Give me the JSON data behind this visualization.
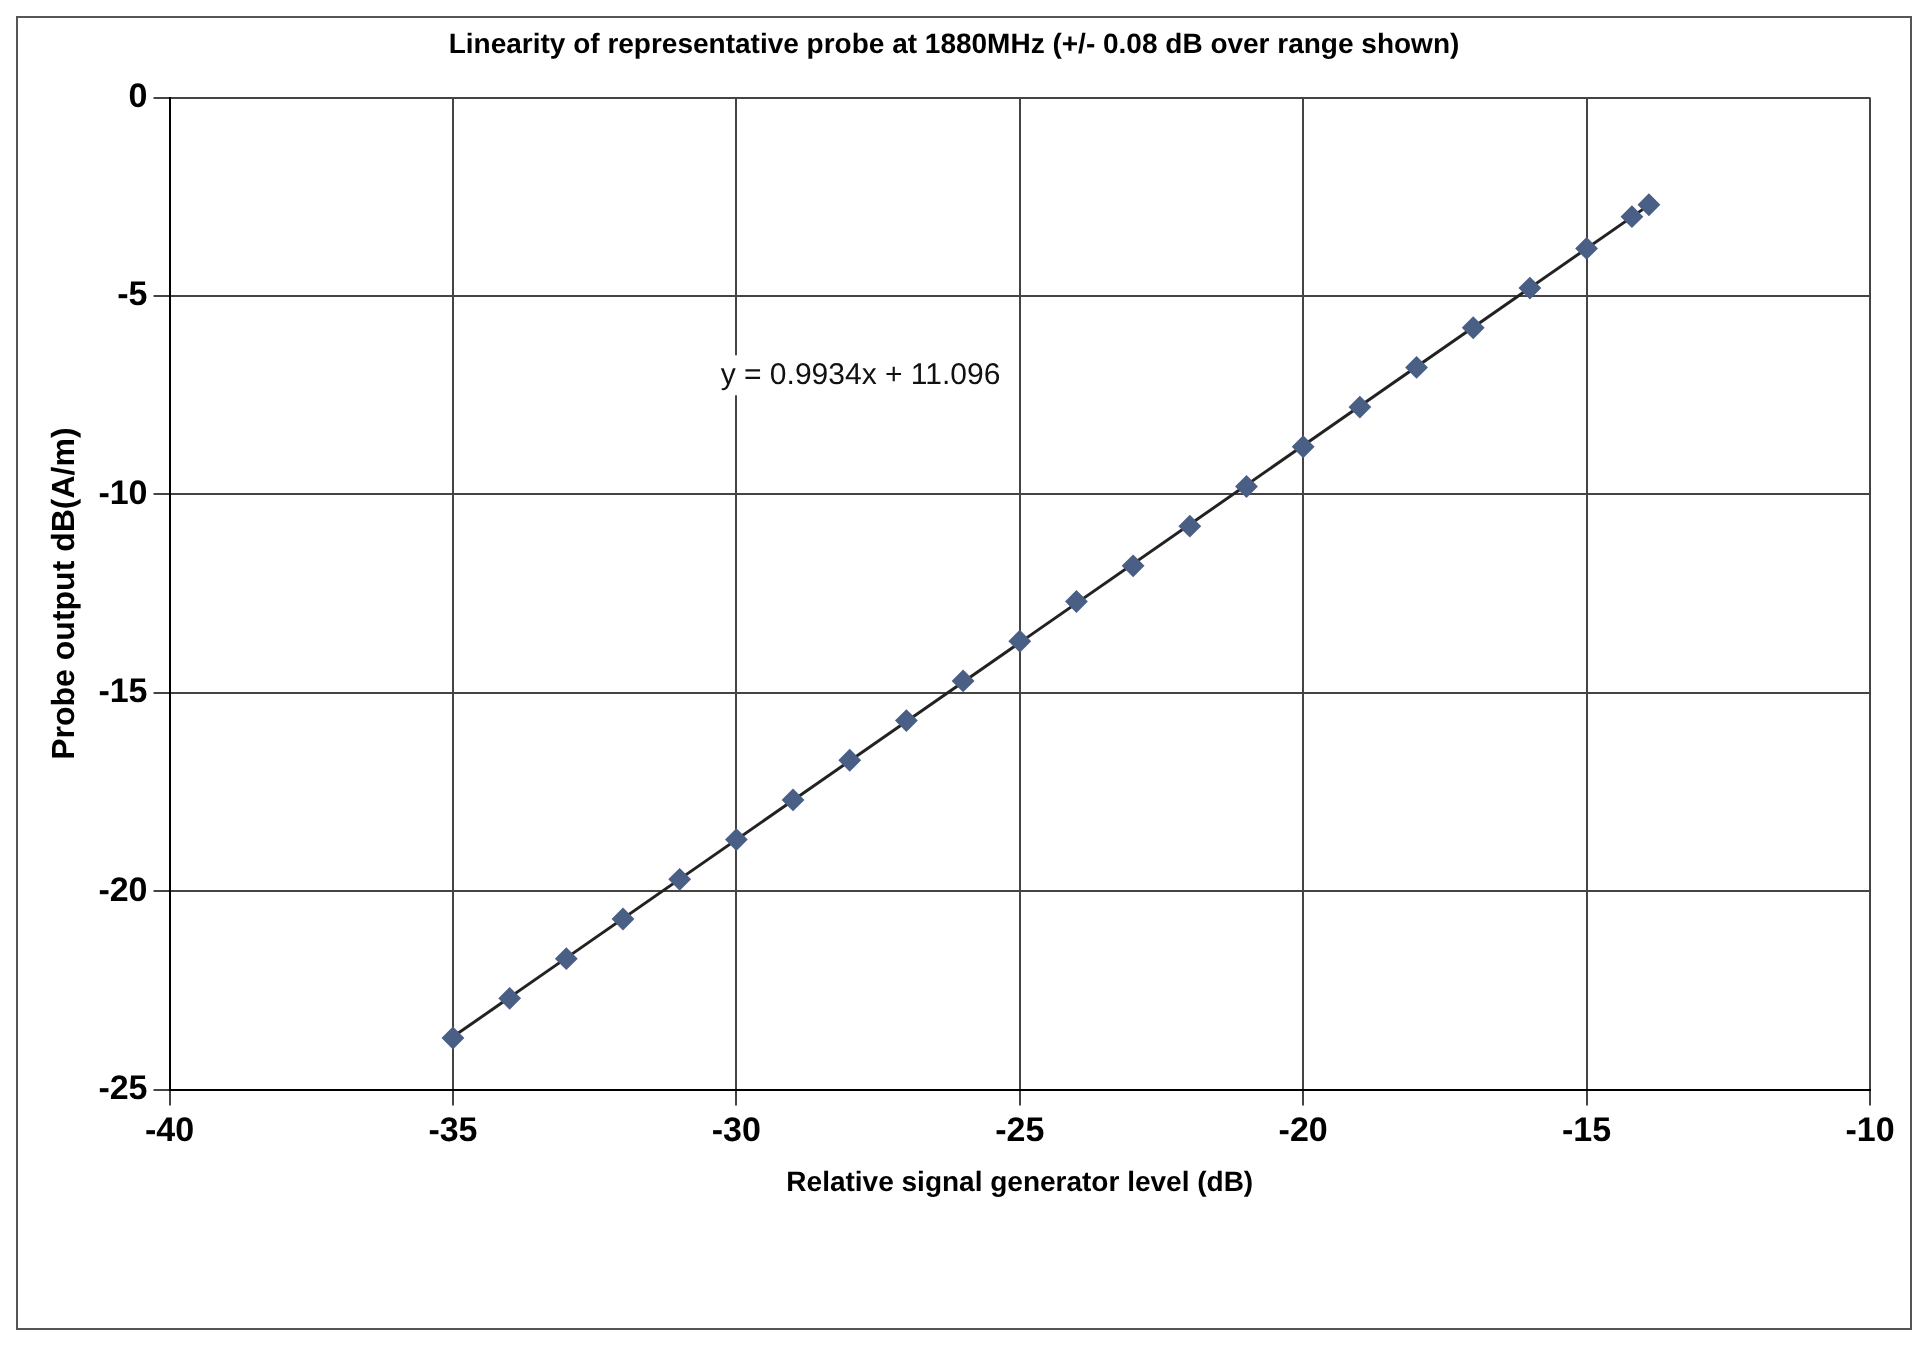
{
  "chart_data": {
    "type": "scatter",
    "title": "Linearity of representative probe at 1880MHz (+/- 0.08 dB over range shown)",
    "xlabel": "Relative signal generator level (dB)",
    "ylabel": "Probe output dB(A/m)",
    "x": [
      -35,
      -34,
      -33,
      -32,
      -31,
      -30,
      -29,
      -28,
      -27,
      -26,
      -25,
      -24,
      -23,
      -22,
      -21,
      -20,
      -19,
      -18,
      -17,
      -16,
      -15,
      -14.2,
      -13.9
    ],
    "series": [
      {
        "color": "#4a5f85",
        "marker": "diamond",
        "values": [
          -23.7,
          -22.7,
          -21.7,
          -20.7,
          -19.7,
          -18.7,
          -17.7,
          -16.7,
          -15.7,
          -14.7,
          -13.7,
          -12.7,
          -11.8,
          -10.8,
          -9.8,
          -8.8,
          -7.8,
          -6.8,
          -5.8,
          -4.8,
          -3.8,
          -3.0,
          -2.7
        ]
      },
      {
        "type": "line",
        "color": "#222222",
        "marker": "none",
        "line_style": "solid",
        "x": [
          -35,
          -13.9
        ],
        "values": [
          -23.67,
          -2.71
        ]
      }
    ],
    "annotations": [
      "y = 0.9934x + 11.096"
    ],
    "xlim": [
      -40,
      -10
    ],
    "xticks": [
      -40,
      -35,
      -30,
      -25,
      -20,
      -15,
      -10
    ],
    "ylim": [
      -25,
      0
    ],
    "yticks": [
      -25,
      -20,
      -15,
      -10,
      -5,
      0
    ],
    "grid": true,
    "legend": false
  }
}
